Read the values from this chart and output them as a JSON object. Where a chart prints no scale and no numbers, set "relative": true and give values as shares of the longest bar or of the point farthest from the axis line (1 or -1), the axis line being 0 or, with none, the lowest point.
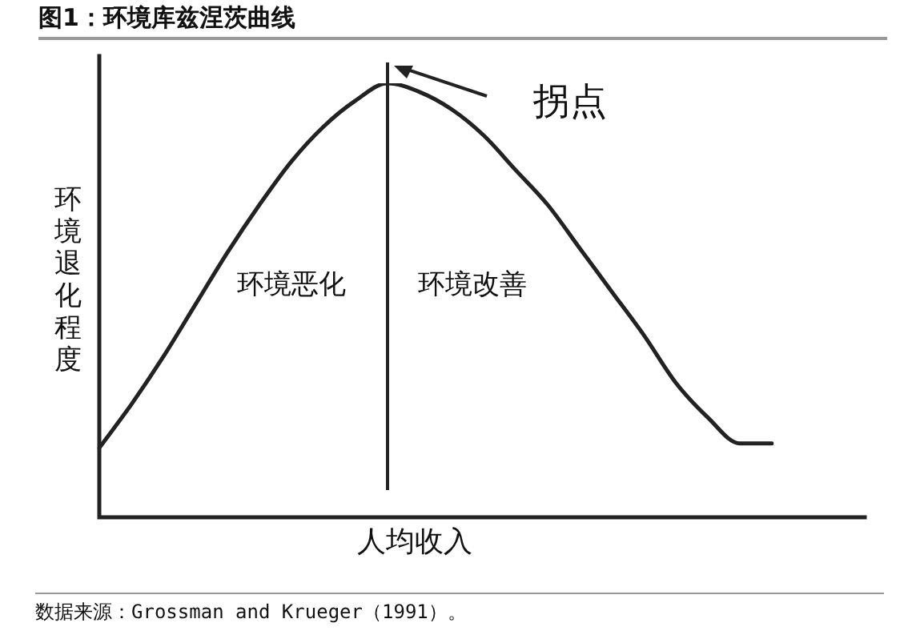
{
  "chart_data": {
    "type": "line",
    "title": "图1：环境库兹涅茨曲线",
    "xlabel": "人均收入",
    "ylabel": "环境退化程度",
    "relative": true,
    "categories": [
      null,
      null,
      null,
      null,
      null,
      null,
      null,
      null,
      null,
      null,
      null,
      null,
      null,
      null,
      null,
      null,
      null,
      null,
      null,
      null,
      null,
      null
    ],
    "series": [
      {
        "color": "#222222",
        "values": [
          0.16,
          0.26,
          0.37,
          0.49,
          0.61,
          0.72,
          0.82,
          0.9,
          0.96,
          1,
          0.98,
          0.94,
          0.88,
          0.8,
          0.72,
          0.62,
          0.52,
          0.42,
          0.31,
          0.23,
          0.17,
          0.17
        ]
      }
    ],
    "annotations": [
      "拐点",
      "环境恶化",
      "环境改善",
      "数据来源：Grossman and Krueger（1991）。"
    ],
    "line_style": "solid"
  }
}
